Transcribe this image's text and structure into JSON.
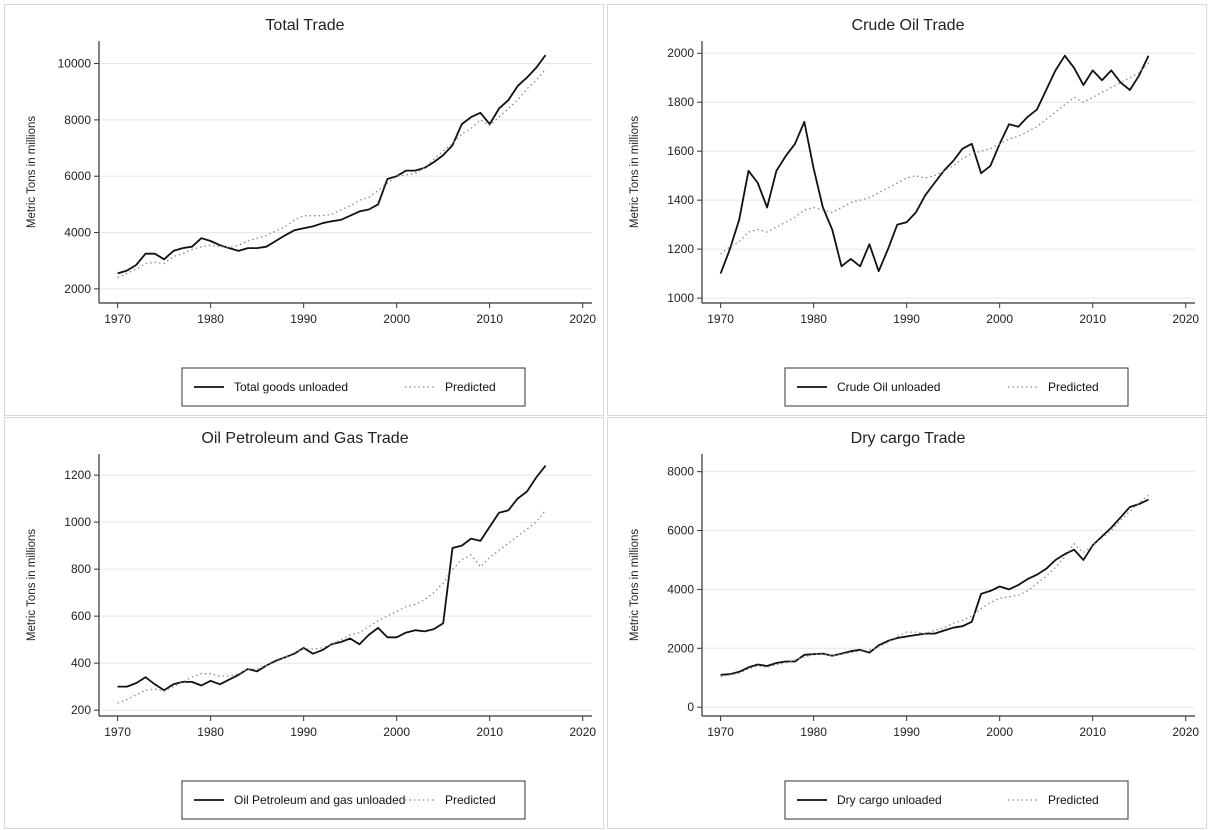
{
  "chart_data": [
    {
      "type": "line",
      "title": "Total Trade",
      "xlabel": "",
      "ylabel": "Metric Tons in millions",
      "xlim": [
        1968,
        2021
      ],
      "ylim": [
        1500,
        10800
      ],
      "xticks": [
        1970,
        1980,
        1990,
        2000,
        2010,
        2020
      ],
      "yticks": [
        2000,
        4000,
        6000,
        8000,
        10000
      ],
      "grid": true,
      "legend_position": "bottom",
      "x": [
        1970,
        1971,
        1972,
        1973,
        1974,
        1975,
        1976,
        1977,
        1978,
        1979,
        1980,
        1981,
        1982,
        1983,
        1984,
        1985,
        1986,
        1987,
        1988,
        1989,
        1990,
        1991,
        1992,
        1993,
        1994,
        1995,
        1996,
        1997,
        1998,
        1999,
        2000,
        2001,
        2002,
        2003,
        2004,
        2005,
        2006,
        2007,
        2008,
        2009,
        2010,
        2011,
        2012,
        2013,
        2014,
        2015,
        2016
      ],
      "series": [
        {
          "name": "Total goods unloaded",
          "style": "solid",
          "values": [
            2550,
            2650,
            2850,
            3250,
            3250,
            3050,
            3350,
            3450,
            3500,
            3800,
            3700,
            3550,
            3450,
            3350,
            3450,
            3450,
            3500,
            3700,
            3900,
            4080,
            4150,
            4220,
            4330,
            4400,
            4450,
            4600,
            4750,
            4820,
            5000,
            5900,
            6000,
            6200,
            6200,
            6300,
            6500,
            6750,
            7100,
            7850,
            8100,
            8250,
            7850,
            8400,
            8700,
            9200,
            9500,
            9850,
            10300
          ]
        },
        {
          "name": "Predicted",
          "style": "dotted",
          "values": [
            2400,
            2550,
            2700,
            2900,
            2950,
            2900,
            3150,
            3250,
            3400,
            3500,
            3550,
            3500,
            3480,
            3550,
            3700,
            3800,
            3900,
            4050,
            4200,
            4450,
            4600,
            4600,
            4600,
            4650,
            4800,
            4950,
            5150,
            5250,
            5500,
            5750,
            6000,
            6050,
            6100,
            6300,
            6600,
            6900,
            7150,
            7500,
            7700,
            8000,
            7800,
            8100,
            8400,
            8700,
            9100,
            9400,
            9800
          ]
        }
      ]
    },
    {
      "type": "line",
      "title": "Crude Oil Trade",
      "xlabel": "",
      "ylabel": "Metric Tons in millions",
      "xlim": [
        1968,
        2021
      ],
      "ylim": [
        980,
        2050
      ],
      "xticks": [
        1970,
        1980,
        1990,
        2000,
        2010,
        2020
      ],
      "yticks": [
        1000,
        1200,
        1400,
        1600,
        1800,
        2000
      ],
      "grid": true,
      "legend_position": "bottom",
      "x": [
        1970,
        1971,
        1972,
        1973,
        1974,
        1975,
        1976,
        1977,
        1978,
        1979,
        1980,
        1981,
        1982,
        1983,
        1984,
        1985,
        1986,
        1987,
        1988,
        1989,
        1990,
        1991,
        1992,
        1993,
        1994,
        1995,
        1996,
        1997,
        1998,
        1999,
        2000,
        2001,
        2002,
        2003,
        2004,
        2005,
        2006,
        2007,
        2008,
        2009,
        2010,
        2011,
        2012,
        2013,
        2014,
        2015,
        2016
      ],
      "series": [
        {
          "name": "Crude Oil unloaded",
          "style": "solid",
          "values": [
            1100,
            1200,
            1320,
            1520,
            1470,
            1370,
            1520,
            1580,
            1630,
            1720,
            1530,
            1370,
            1280,
            1130,
            1160,
            1130,
            1220,
            1110,
            1200,
            1300,
            1310,
            1350,
            1420,
            1470,
            1520,
            1560,
            1610,
            1630,
            1510,
            1540,
            1630,
            1710,
            1700,
            1740,
            1770,
            1850,
            1930,
            1990,
            1940,
            1870,
            1930,
            1890,
            1930,
            1880,
            1850,
            1910,
            1990
          ]
        },
        {
          "name": "Predicted",
          "style": "dotted",
          "values": [
            1180,
            1210,
            1230,
            1270,
            1280,
            1270,
            1290,
            1310,
            1330,
            1360,
            1370,
            1360,
            1350,
            1370,
            1390,
            1400,
            1410,
            1430,
            1450,
            1470,
            1490,
            1500,
            1490,
            1500,
            1520,
            1540,
            1570,
            1590,
            1600,
            1610,
            1630,
            1650,
            1660,
            1680,
            1700,
            1730,
            1760,
            1790,
            1820,
            1800,
            1820,
            1840,
            1860,
            1880,
            1900,
            1920,
            1960
          ]
        }
      ]
    },
    {
      "type": "line",
      "title": "Oil Petroleum and Gas Trade",
      "xlabel": "",
      "ylabel": "Metric Tons in millions",
      "xlim": [
        1968,
        2021
      ],
      "ylim": [
        175,
        1290
      ],
      "xticks": [
        1970,
        1980,
        1990,
        2000,
        2010,
        2020
      ],
      "yticks": [
        200,
        400,
        600,
        800,
        1000,
        1200
      ],
      "grid": true,
      "legend_position": "bottom",
      "x": [
        1970,
        1971,
        1972,
        1973,
        1974,
        1975,
        1976,
        1977,
        1978,
        1979,
        1980,
        1981,
        1982,
        1983,
        1984,
        1985,
        1986,
        1987,
        1988,
        1989,
        1990,
        1991,
        1992,
        1993,
        1994,
        1995,
        1996,
        1997,
        1998,
        1999,
        2000,
        2001,
        2002,
        2003,
        2004,
        2005,
        2006,
        2007,
        2008,
        2009,
        2010,
        2011,
        2012,
        2013,
        2014,
        2015,
        2016
      ],
      "series": [
        {
          "name": "Oil Petroleum and gas unloaded",
          "style": "solid",
          "values": [
            300,
            300,
            315,
            340,
            310,
            285,
            310,
            320,
            320,
            305,
            325,
            310,
            330,
            350,
            375,
            365,
            390,
            410,
            425,
            440,
            465,
            440,
            455,
            480,
            490,
            505,
            480,
            520,
            550,
            510,
            510,
            530,
            540,
            535,
            545,
            570,
            890,
            900,
            930,
            920,
            980,
            1040,
            1050,
            1100,
            1130,
            1190,
            1240
          ]
        },
        {
          "name": "Predicted",
          "style": "dotted",
          "values": [
            230,
            245,
            265,
            285,
            290,
            280,
            300,
            320,
            340,
            355,
            355,
            345,
            345,
            355,
            375,
            375,
            390,
            405,
            425,
            445,
            460,
            460,
            465,
            480,
            500,
            520,
            530,
            555,
            580,
            600,
            620,
            640,
            650,
            670,
            700,
            740,
            800,
            840,
            860,
            810,
            850,
            880,
            910,
            940,
            970,
            1000,
            1050
          ]
        }
      ]
    },
    {
      "type": "line",
      "title": "Dry cargo Trade",
      "xlabel": "",
      "ylabel": "Metric Tons in millions",
      "xlim": [
        1968,
        2021
      ],
      "ylim": [
        -300,
        8600
      ],
      "xticks": [
        1970,
        1980,
        1990,
        2000,
        2010,
        2020
      ],
      "yticks": [
        0,
        2000,
        4000,
        6000,
        8000
      ],
      "grid": true,
      "legend_position": "bottom",
      "x": [
        1970,
        1971,
        1972,
        1973,
        1974,
        1975,
        1976,
        1977,
        1978,
        1979,
        1980,
        1981,
        1982,
        1983,
        1984,
        1985,
        1986,
        1987,
        1988,
        1989,
        1990,
        1991,
        1992,
        1993,
        1994,
        1995,
        1996,
        1997,
        1998,
        1999,
        2000,
        2001,
        2002,
        2003,
        2004,
        2005,
        2006,
        2007,
        2008,
        2009,
        2010,
        2011,
        2012,
        2013,
        2014,
        2015,
        2016
      ],
      "series": [
        {
          "name": "Dry cargo unloaded",
          "style": "solid",
          "values": [
            1100,
            1120,
            1200,
            1350,
            1450,
            1400,
            1500,
            1550,
            1550,
            1780,
            1800,
            1820,
            1750,
            1820,
            1900,
            1950,
            1850,
            2100,
            2250,
            2350,
            2400,
            2450,
            2500,
            2500,
            2600,
            2700,
            2750,
            2900,
            3850,
            3950,
            4100,
            4000,
            4150,
            4350,
            4500,
            4700,
            5000,
            5200,
            5350,
            5000,
            5500,
            5800,
            6100,
            6450,
            6800,
            6900,
            7050
          ]
        },
        {
          "name": "Predicted",
          "style": "dotted",
          "values": [
            1050,
            1100,
            1150,
            1300,
            1400,
            1350,
            1450,
            1500,
            1600,
            1700,
            1800,
            1800,
            1750,
            1800,
            1850,
            1900,
            1950,
            2050,
            2200,
            2400,
            2550,
            2550,
            2500,
            2600,
            2700,
            2850,
            2950,
            3100,
            3350,
            3550,
            3700,
            3750,
            3800,
            3950,
            4200,
            4450,
            4750,
            5100,
            5550,
            5250,
            5500,
            5750,
            6000,
            6350,
            6650,
            6950,
            7200
          ]
        }
      ]
    }
  ]
}
